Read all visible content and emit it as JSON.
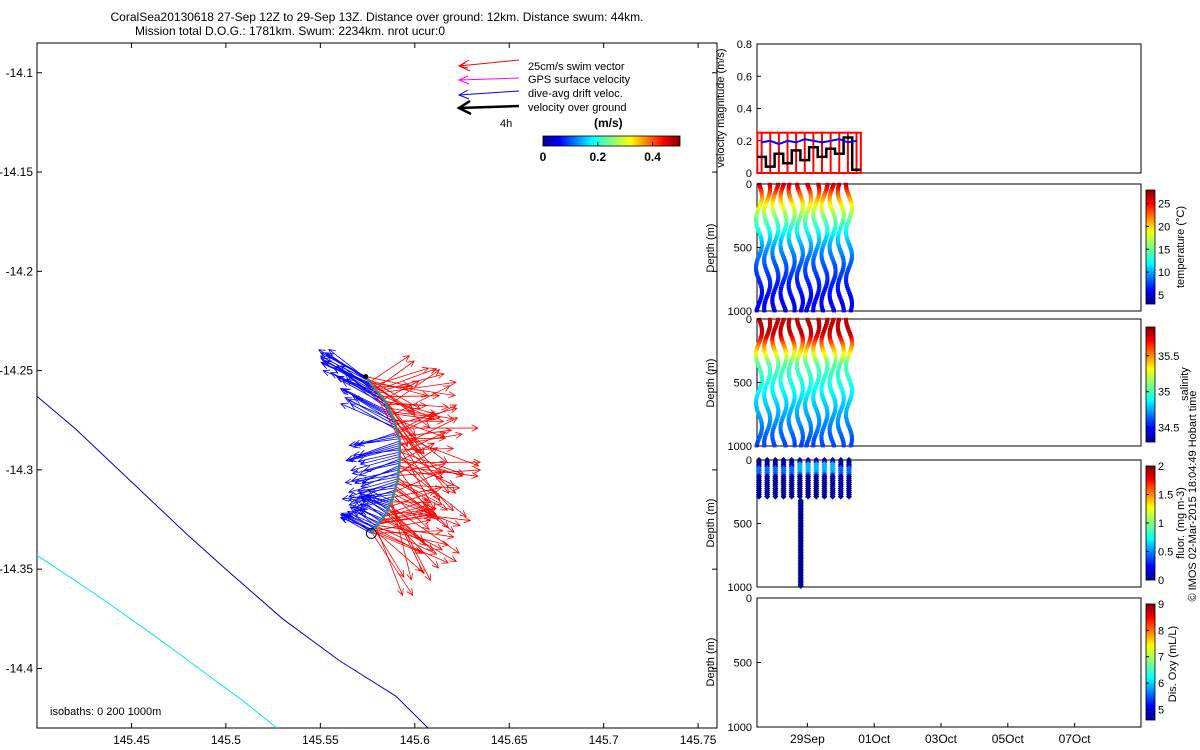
{
  "header": {
    "line1": "CoralSea20130618 27-Sep 12Z to 29-Sep 13Z. Distance over ground: 12km. Distance swum: 44km.",
    "line2": "Mission total D.O.G.: 1781km. Swum: 2234km. nrot ucur:0"
  },
  "map": {
    "xticks": [
      145.45,
      145.5,
      145.55,
      145.6,
      145.65,
      145.7,
      145.75
    ],
    "xtick_labels": [
      "145.45",
      "145.5",
      "145.55",
      "145.6",
      "145.65",
      "145.7",
      "145.75"
    ],
    "yticks": [
      -14.1,
      -14.15,
      -14.2,
      -14.25,
      -14.3,
      -14.35,
      -14.4
    ],
    "ytick_labels": [
      "-14.1",
      "-14.15",
      "-14.2",
      "-14.25",
      "-14.3",
      "-14.35",
      "-14.4"
    ],
    "xlim": [
      145.4,
      145.76
    ],
    "ylim": [
      -14.43,
      -14.085
    ],
    "isobath_label": "isobaths: 0   200  1000m",
    "legend": {
      "items": [
        {
          "label": "25cm/s swim vector",
          "color": "#ff0000"
        },
        {
          "label": "GPS surface velocity",
          "color": "#ff00ff"
        },
        {
          "label": "dive-avg drift veloc.",
          "color": "#0000ff"
        },
        {
          "label": "velocity over ground",
          "color": "#000000"
        }
      ],
      "time_label": "4h"
    },
    "colorbar": {
      "units": "(m/s)",
      "tick_labels": [
        "0",
        "0.2",
        "0.4"
      ],
      "range": [
        0,
        0.5
      ]
    },
    "isobaths": [
      {
        "name": "1000m",
        "color": "#0000cc",
        "points": [
          [
            145.4,
            -14.263
          ],
          [
            145.42,
            -14.279
          ],
          [
            145.45,
            -14.306
          ],
          [
            145.48,
            -14.333
          ],
          [
            145.5,
            -14.35
          ],
          [
            145.53,
            -14.375
          ],
          [
            145.56,
            -14.396
          ],
          [
            145.59,
            -14.414
          ],
          [
            145.607,
            -14.43
          ]
        ]
      },
      {
        "name": "200m",
        "color": "#00e5ff",
        "points": [
          [
            145.4,
            -14.343
          ],
          [
            145.43,
            -14.362
          ],
          [
            145.46,
            -14.382
          ],
          [
            145.49,
            -14.403
          ],
          [
            145.51,
            -14.417
          ],
          [
            145.527,
            -14.43
          ]
        ]
      }
    ],
    "track": {
      "color": "#3a8a8a",
      "points": [
        [
          145.574,
          -14.253
        ],
        [
          145.578,
          -14.258
        ],
        [
          145.584,
          -14.265
        ],
        [
          145.589,
          -14.275
        ],
        [
          145.592,
          -14.285
        ],
        [
          145.592,
          -14.295
        ],
        [
          145.591,
          -14.305
        ],
        [
          145.588,
          -14.315
        ],
        [
          145.585,
          -14.322
        ],
        [
          145.58,
          -14.328
        ],
        [
          145.577,
          -14.332
        ]
      ]
    },
    "start_marker": [
      145.577,
      -14.332
    ],
    "end_marker": [
      145.574,
      -14.253
    ]
  },
  "panels": {
    "velocity": {
      "ylabel": "velocity magnitude (m/s)",
      "ytick_labels": [
        "0",
        "0.2",
        "0.4",
        "0.6",
        "0.8"
      ],
      "ylim": [
        0,
        0.8
      ]
    },
    "depth_ytick_labels": [
      "0",
      "500",
      "1000"
    ],
    "depth_ylabel": "Depth (m)",
    "ylim_depth": [
      1000,
      0
    ],
    "temperature": {
      "cblabel": "temperature (°C)",
      "cbticks": [
        "5",
        "10",
        "15",
        "20",
        "25"
      ],
      "cbrange": [
        3,
        28
      ]
    },
    "salinity": {
      "cblabel": "salinity",
      "cbticks": [
        "34.5",
        "35",
        "35.5"
      ],
      "cbrange": [
        34.3,
        35.9
      ]
    },
    "fluor": {
      "cblabel": "fluor. (mg m-3)",
      "cbticks": [
        "0",
        "0.5",
        "1",
        "1.5",
        "2"
      ],
      "cbrange": [
        0,
        2
      ]
    },
    "oxygen": {
      "cblabel": "Dis. Oxy (mL/L)",
      "cbticks": [
        "5",
        "6",
        "7",
        "8",
        "9"
      ],
      "cbrange": [
        4.6,
        9
      ]
    },
    "xtick_labels": [
      "29Sep",
      "01Oct",
      "03Oct",
      "05Oct",
      "07Oct"
    ]
  },
  "credit": "© IMOS 02-Mar-2015 18:04:49 Hobart time",
  "chart_data": [
    {
      "type": "line",
      "title": "CoralSea20130618 27-Sep 12Z to 29-Sep 13Z. Distance over ground: 12km. Distance swum: 44km.",
      "xlabel": "",
      "ylabel": "",
      "xlim": [
        145.4,
        145.76
      ],
      "ylim": [
        -14.43,
        -14.085
      ],
      "series": [
        {
          "name": "glider track",
          "x": [
            145.574,
            145.578,
            145.584,
            145.589,
            145.592,
            145.592,
            145.591,
            145.588,
            145.585,
            145.58,
            145.577
          ],
          "y": [
            -14.253,
            -14.258,
            -14.265,
            -14.275,
            -14.285,
            -14.295,
            -14.305,
            -14.315,
            -14.322,
            -14.328,
            -14.332
          ]
        },
        {
          "name": "1000m isobath",
          "x": [
            145.4,
            145.42,
            145.45,
            145.48,
            145.5,
            145.53,
            145.56,
            145.59,
            145.607
          ],
          "y": [
            -14.263,
            -14.279,
            -14.306,
            -14.333,
            -14.35,
            -14.375,
            -14.396,
            -14.414,
            -14.43
          ]
        },
        {
          "name": "200m isobath",
          "x": [
            145.4,
            145.43,
            145.46,
            145.49,
            145.51,
            145.527
          ],
          "y": [
            -14.343,
            -14.362,
            -14.382,
            -14.403,
            -14.417,
            -14.43
          ]
        }
      ]
    },
    {
      "type": "line",
      "ylabel": "velocity magnitude (m/s)",
      "ylim": [
        0,
        0.8
      ],
      "x_day_range": [
        27.5,
        30.6
      ],
      "series": [
        {
          "name": "dive-avg drift",
          "color": "#0000ff",
          "values": [
            0.19,
            0.2,
            0.18,
            0.2,
            0.19,
            0.21,
            0.2,
            0.19,
            0.2,
            0.21,
            0.19,
            0.2
          ]
        },
        {
          "name": "velocity over ground",
          "color": "#000000",
          "values": [
            0.1,
            0.04,
            0.12,
            0.06,
            0.14,
            0.08,
            0.16,
            0.1,
            0.15,
            0.12,
            0.22,
            0.02
          ]
        },
        {
          "name": "swim",
          "color": "#ff0000",
          "values": [
            0.25,
            0.25,
            0.25,
            0.25,
            0.25,
            0.25,
            0.25,
            0.25,
            0.25,
            0.25,
            0.25,
            0.25
          ]
        }
      ]
    },
    {
      "type": "scatter",
      "variable": "temperature",
      "depth_range": [
        0,
        1000
      ],
      "profiles": 12,
      "surface_value": 27,
      "bottom_value": 4
    },
    {
      "type": "scatter",
      "variable": "salinity",
      "depth_range": [
        0,
        1000
      ],
      "profiles": 12,
      "surface_value": 35.8,
      "bottom_value": 34.6
    },
    {
      "type": "scatter",
      "variable": "fluor",
      "depth_range": [
        0,
        1000
      ],
      "surface_value": 0.3,
      "deep_value": 0.05
    }
  ]
}
